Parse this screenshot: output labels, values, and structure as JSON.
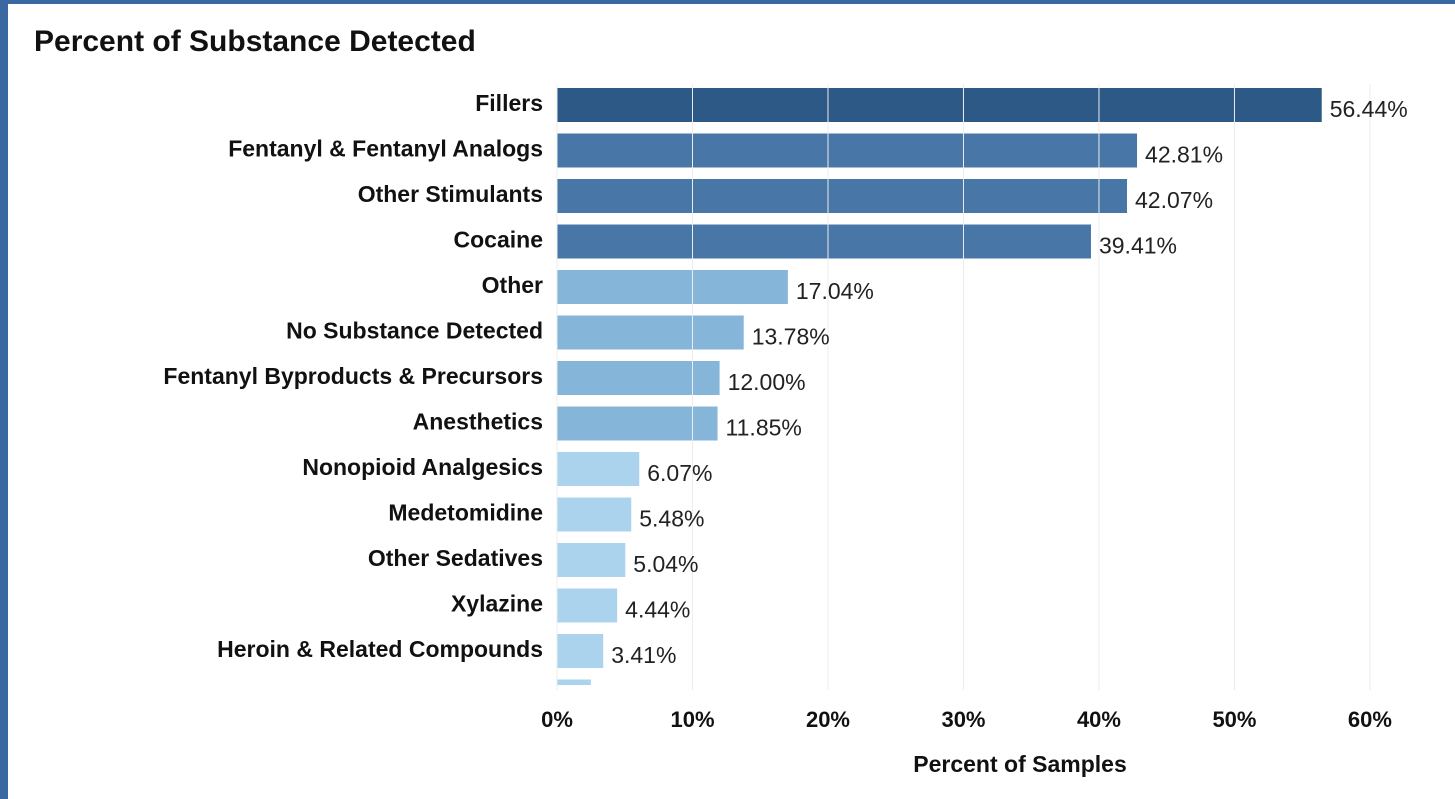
{
  "chart_data": {
    "type": "hbar",
    "title": "Percent of Substance Detected",
    "x_label": "Percent of Samples",
    "categories": [
      "Fillers",
      "Fentanyl & Fentanyl Analogs",
      "Other Stimulants",
      "Cocaine",
      "Other",
      "No Substance Detected",
      "Fentanyl Byproducts & Precursors",
      "Anesthetics",
      "Nonopioid Analgesics",
      "Medetomidine",
      "Other Sedatives",
      "Xylazine",
      "Heroin & Related Compounds",
      null
    ],
    "values": [
      56.44,
      42.81,
      42.07,
      39.41,
      17.04,
      13.78,
      12.0,
      11.85,
      6.07,
      5.48,
      5.04,
      4.44,
      3.41,
      2.5
    ],
    "value_labels": [
      "56.44%",
      "42.81%",
      "42.07%",
      "39.41%",
      "17.04%",
      "13.78%",
      "12.00%",
      "11.85%",
      "6.07%",
      "5.48%",
      "5.04%",
      "4.44%",
      "3.41%",
      null
    ],
    "colors": [
      "#2c5985",
      "#4877a7",
      "#4877a7",
      "#4877a7",
      "#86b5da",
      "#86b5da",
      "#86b5da",
      "#86b5da",
      "#acd3ed",
      "#acd3ed",
      "#acd3ed",
      "#acd3ed",
      "#acd3ed",
      "#acd3ed"
    ],
    "xlim": [
      0,
      65
    ],
    "xticks": [
      {
        "value": 0,
        "label": "0%"
      },
      {
        "value": 10,
        "label": "10%"
      },
      {
        "value": 20,
        "label": "20%"
      },
      {
        "value": 30,
        "label": "30%"
      },
      {
        "value": 40,
        "label": "40%"
      },
      {
        "value": 50,
        "label": "50%"
      },
      {
        "value": 60,
        "label": "60%"
      }
    ],
    "grid": true
  }
}
